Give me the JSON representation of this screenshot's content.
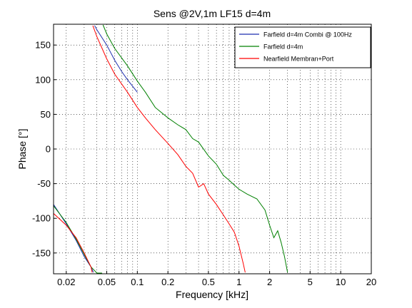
{
  "chart_data": {
    "type": "line",
    "title": "Sens @2V,1m LF15 d=4m",
    "xlabel": "Frequency [kHz]",
    "ylabel": "Phase [°]",
    "xscale": "log",
    "xlim": [
      0.015,
      20
    ],
    "ylim": [
      -180,
      180
    ],
    "grid": true,
    "grid_style": "dotted",
    "legend_position": "top-right",
    "x_ticks": [
      0.02,
      0.05,
      0.1,
      0.2,
      0.5,
      1,
      2,
      5,
      10,
      20
    ],
    "x_tick_labels": [
      "0.02",
      "0.05",
      "0.1",
      "0.2",
      "0.5",
      "1",
      "2",
      "5",
      "10",
      "20"
    ],
    "y_ticks": [
      150,
      100,
      50,
      0,
      -50,
      -100,
      -150
    ],
    "y_tick_labels": [
      "150",
      "100",
      "50",
      "0",
      "-50",
      "-100",
      "-150"
    ],
    "series": [
      {
        "name": "Farfield d=4m Combi @ 100Hz",
        "color": "#1f2fb0",
        "points": [
          [
            0.015,
            -80
          ],
          [
            0.02,
            -108
          ],
          [
            0.025,
            -132
          ],
          [
            0.03,
            -155
          ],
          [
            0.035,
            -170
          ],
          [
            0.037,
            -178
          ],
          [
            0.038,
            178
          ],
          [
            0.04,
            172
          ],
          [
            0.05,
            150
          ],
          [
            0.06,
            128
          ],
          [
            0.07,
            112
          ],
          [
            0.08,
            100
          ],
          [
            0.1,
            82
          ]
        ]
      },
      {
        "name": "Farfield d=4m",
        "color": "#008000",
        "points": [
          [
            0.015,
            -82
          ],
          [
            0.02,
            -106
          ],
          [
            0.025,
            -130
          ],
          [
            0.03,
            -152
          ],
          [
            0.035,
            -170
          ],
          [
            0.04,
            -179
          ],
          [
            0.045,
            -179
          ],
          [
            0.046,
            179
          ],
          [
            0.05,
            166
          ],
          [
            0.06,
            145
          ],
          [
            0.08,
            120
          ],
          [
            0.1,
            98
          ],
          [
            0.12,
            82
          ],
          [
            0.15,
            60
          ],
          [
            0.2,
            45
          ],
          [
            0.25,
            35
          ],
          [
            0.3,
            28
          ],
          [
            0.35,
            15
          ],
          [
            0.4,
            10
          ],
          [
            0.5,
            -10
          ],
          [
            0.6,
            -22
          ],
          [
            0.7,
            -38
          ],
          [
            0.8,
            -45
          ],
          [
            0.9,
            -52
          ],
          [
            1.0,
            -58
          ],
          [
            1.2,
            -65
          ],
          [
            1.5,
            -72
          ],
          [
            1.8,
            -88
          ],
          [
            2.0,
            -110
          ],
          [
            2.2,
            -128
          ],
          [
            2.4,
            -118
          ],
          [
            2.6,
            -135
          ],
          [
            2.8,
            -155
          ],
          [
            3.0,
            -178
          ]
        ]
      },
      {
        "name": "Nearfield Membran+Port",
        "color": "#ff0000",
        "points": [
          [
            0.015,
            -93
          ],
          [
            0.02,
            -110
          ],
          [
            0.025,
            -128
          ],
          [
            0.03,
            -150
          ],
          [
            0.035,
            -170
          ],
          [
            0.036,
            -178
          ],
          [
            0.0365,
            178
          ],
          [
            0.04,
            162
          ],
          [
            0.05,
            130
          ],
          [
            0.06,
            108
          ],
          [
            0.08,
            82
          ],
          [
            0.1,
            60
          ],
          [
            0.12,
            45
          ],
          [
            0.15,
            28
          ],
          [
            0.2,
            8
          ],
          [
            0.25,
            -8
          ],
          [
            0.3,
            -25
          ],
          [
            0.35,
            -35
          ],
          [
            0.4,
            -55
          ],
          [
            0.45,
            -50
          ],
          [
            0.5,
            -65
          ],
          [
            0.6,
            -80
          ],
          [
            0.7,
            -95
          ],
          [
            0.8,
            -108
          ],
          [
            0.9,
            -120
          ],
          [
            1.0,
            -140
          ],
          [
            1.1,
            -165
          ],
          [
            1.15,
            -178
          ]
        ]
      }
    ]
  }
}
